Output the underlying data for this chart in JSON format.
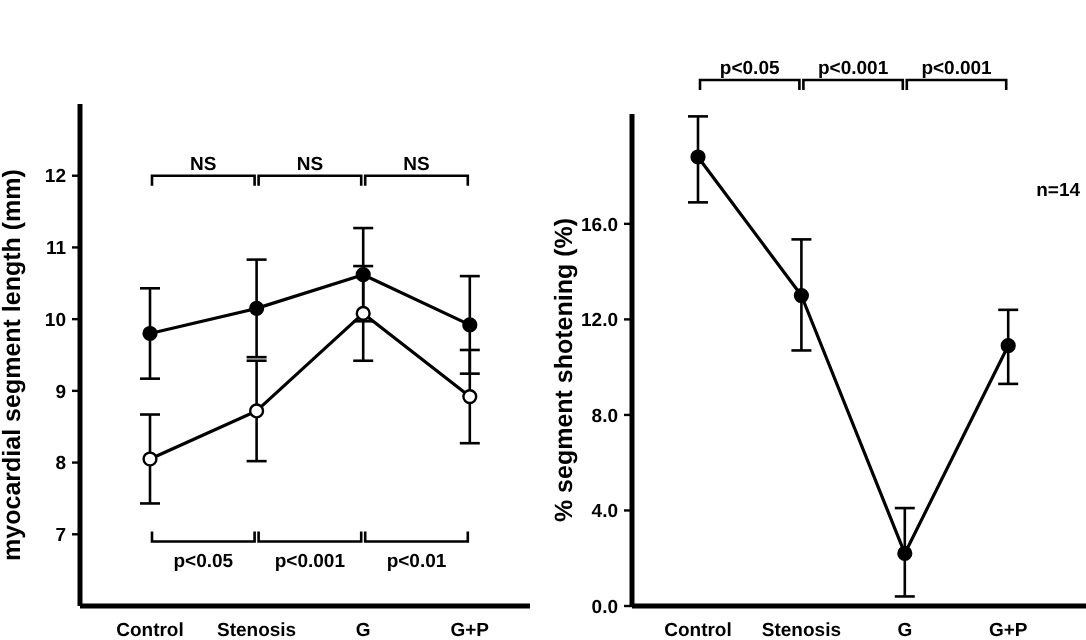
{
  "chart_data": [
    {
      "type": "line",
      "ylabel": "myocardial segment length (mm)",
      "categories": [
        "Control",
        "Stenosis",
        "G",
        "G+P"
      ],
      "ylim": [
        6,
        13
      ],
      "yticks": [
        7,
        8,
        9,
        10,
        11,
        12
      ],
      "marker": "circle",
      "series": [
        {
          "color": "#000000",
          "values": [
            9.8,
            10.15,
            10.62,
            9.92
          ],
          "errors": [
            0.63,
            0.68,
            0.65,
            0.68
          ]
        },
        {
          "color": "#000000",
          "values": [
            8.05,
            8.72,
            10.08,
            8.92
          ],
          "errors": [
            0.62,
            0.7,
            0.66,
            0.65
          ]
        }
      ],
      "annotations": [
        "NS",
        "NS",
        "NS",
        "p<0.05",
        "p<0.001",
        "p<0.01"
      ]
    },
    {
      "type": "line",
      "ylabel": "% segment shotening (%)",
      "categories": [
        "Control",
        "Stenosis",
        "G",
        "G+P"
      ],
      "ylim": [
        0,
        20.6
      ],
      "yticks": [
        {
          "value": 0,
          "label": "0.0"
        },
        {
          "value": 4,
          "label": "4.0"
        },
        {
          "value": 8,
          "label": "8.0"
        },
        {
          "value": 12,
          "label": "12.0"
        },
        {
          "value": 16,
          "label": "16.0"
        }
      ],
      "marker": "circle",
      "series": [
        {
          "color": "#000000",
          "values": [
            18.8,
            13.0,
            2.2,
            10.9
          ],
          "errors": [
            [
              16.9,
              20.5
            ],
            [
              10.7,
              15.35
            ],
            [
              0.4,
              4.1
            ],
            [
              9.3,
              12.4
            ]
          ]
        }
      ],
      "annotations": [
        "p<0.05",
        "p<0.001",
        "p<0.001",
        "n=14"
      ]
    }
  ]
}
